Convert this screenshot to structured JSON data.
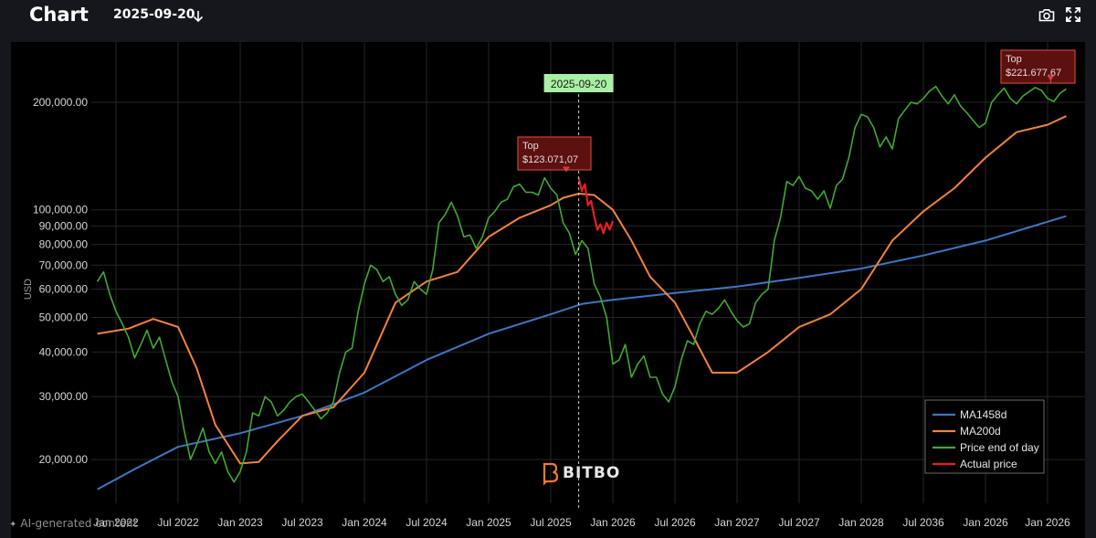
{
  "header": {
    "title": "Chart",
    "date": "2025-09-20"
  },
  "icons": {
    "download": "download-arrow-icon",
    "camera": "camera-icon",
    "fullscreen": "fullscreen-icon"
  },
  "colors": {
    "ma1458": "#3a78c6",
    "ma200": "#f5823a",
    "price": "#3fab2f",
    "actual": "#e8201c",
    "cursor_badge_bg": "#a8f0a4",
    "top_box_bg": "#5c1010",
    "top_box_border": "#c8443c"
  },
  "watermark": {
    "brand": "BITBO",
    "ai_label": "AI-generated content"
  },
  "chart_data": {
    "type": "line",
    "title": "",
    "xlabel": "",
    "ylabel": "USD",
    "y_scale": "log",
    "ylim": [
      16000,
      270000
    ],
    "grid": true,
    "y_ticks": [
      {
        "value": 200000,
        "label": "200,000.00"
      },
      {
        "value": 100000,
        "label": "100,000.00"
      },
      {
        "value": 90000,
        "label": "90,000.00"
      },
      {
        "value": 80000,
        "label": "80,000.00"
      },
      {
        "value": 70000,
        "label": "70,000.00"
      },
      {
        "value": 60000,
        "label": "60,000.00"
      },
      {
        "value": 50000,
        "label": "50,000.00"
      },
      {
        "value": 40000,
        "label": "40,000.00"
      },
      {
        "value": 30000,
        "label": "30,000.00"
      },
      {
        "value": 20000,
        "label": "20,000.00"
      }
    ],
    "x_ticks": [
      "Jan 2022",
      "Jul 2022",
      "Jan 2023",
      "Jul 2023",
      "Jan 2024",
      "Jul 2024",
      "Jan 2025",
      "Jul 2025",
      "Jan 2026",
      "Jul 2026",
      "Jan 2027",
      "Jul 2027",
      "Jan 2028",
      "Jul 2036",
      "Jan 2026",
      "Jan 2026"
    ],
    "legend": {
      "placement": "bottom-right",
      "entries": [
        "MA1458d",
        "MA200d",
        "Price end of day",
        "Actual price"
      ]
    },
    "cursor": {
      "x": 7.45,
      "label": "2025-09-20"
    },
    "annotations": [
      {
        "text": "Top",
        "value_text": "$123.071,07",
        "x": 7.25,
        "y": 123071
      },
      {
        "text": "Top",
        "value_text": "$221.677,67",
        "x": 15.05,
        "y": 221678
      }
    ],
    "series": [
      {
        "name": "MA1458d",
        "x": [
          -0.3,
          0.3,
          1.0,
          2.0,
          3.0,
          4.0,
          5.0,
          6.0,
          7.0,
          7.5,
          8.0,
          9.0,
          10.0,
          11.0,
          12.0,
          13.0,
          14.0,
          15.3
        ],
        "values": [
          16500,
          18800,
          21700,
          23700,
          26500,
          30800,
          38000,
          45000,
          51000,
          54500,
          56000,
          58500,
          61000,
          64500,
          68500,
          74500,
          82000,
          96000
        ]
      },
      {
        "name": "MA200d",
        "x": [
          -0.3,
          0.2,
          0.6,
          1.0,
          1.3,
          1.6,
          2.0,
          2.3,
          2.6,
          3.0,
          3.5,
          4.0,
          4.5,
          5.0,
          5.5,
          6.0,
          6.5,
          7.0,
          7.2,
          7.45,
          7.7,
          8.0,
          8.3,
          8.6,
          9.0,
          9.3,
          9.6,
          10.0,
          10.5,
          11.0,
          11.5,
          12.0,
          12.5,
          13.0,
          13.5,
          14.0,
          14.5,
          15.0,
          15.3
        ],
        "values": [
          45000,
          46500,
          49500,
          47000,
          36000,
          25000,
          19500,
          19700,
          22500,
          26500,
          28000,
          35000,
          55000,
          63000,
          67000,
          84000,
          95000,
          103000,
          108000,
          111000,
          110000,
          100000,
          82000,
          65000,
          55000,
          44000,
          35000,
          35000,
          40000,
          47000,
          51000,
          60000,
          82000,
          99000,
          115000,
          140000,
          165000,
          173000,
          183000
        ]
      },
      {
        "name": "Price end of day",
        "x": [
          -0.3,
          -0.2,
          -0.1,
          0.0,
          0.1,
          0.2,
          0.3,
          0.4,
          0.5,
          0.6,
          0.7,
          0.8,
          0.9,
          1.0,
          1.1,
          1.2,
          1.3,
          1.4,
          1.5,
          1.6,
          1.7,
          1.8,
          1.9,
          2.0,
          2.1,
          2.2,
          2.3,
          2.4,
          2.5,
          2.6,
          2.7,
          2.8,
          2.9,
          3.0,
          3.1,
          3.2,
          3.3,
          3.4,
          3.5,
          3.6,
          3.7,
          3.8,
          3.9,
          4.0,
          4.1,
          4.2,
          4.3,
          4.4,
          4.5,
          4.6,
          4.7,
          4.8,
          4.9,
          5.0,
          5.1,
          5.2,
          5.3,
          5.4,
          5.5,
          5.6,
          5.7,
          5.8,
          5.9,
          6.0,
          6.1,
          6.2,
          6.3,
          6.4,
          6.5,
          6.6,
          6.7,
          6.8,
          6.9,
          7.0,
          7.1,
          7.2,
          7.3,
          7.4,
          7.5,
          7.6,
          7.7,
          7.8,
          7.9,
          8.0,
          8.1,
          8.2,
          8.3,
          8.4,
          8.5,
          8.6,
          8.7,
          8.8,
          8.9,
          9.0,
          9.1,
          9.2,
          9.3,
          9.4,
          9.5,
          9.6,
          9.7,
          9.8,
          9.9,
          10.0,
          10.1,
          10.2,
          10.3,
          10.4,
          10.5,
          10.6,
          10.7,
          10.8,
          10.9,
          11.0,
          11.1,
          11.2,
          11.3,
          11.4,
          11.5,
          11.6,
          11.7,
          11.8,
          11.9,
          12.0,
          12.1,
          12.2,
          12.3,
          12.4,
          12.5,
          12.6,
          12.7,
          12.8,
          12.9,
          13.0,
          13.1,
          13.2,
          13.3,
          13.4,
          13.5,
          13.6,
          13.7,
          13.8,
          13.9,
          14.0,
          14.1,
          14.2,
          14.3,
          14.4,
          14.5,
          14.6,
          14.7,
          14.8,
          14.9,
          15.0,
          15.1,
          15.2,
          15.3
        ],
        "values": [
          63000,
          67000,
          58000,
          52000,
          48000,
          44000,
          38500,
          42000,
          46000,
          41000,
          44000,
          38000,
          33000,
          30000,
          24000,
          20000,
          22000,
          24500,
          21000,
          19500,
          21000,
          18500,
          17300,
          18500,
          21000,
          27000,
          26500,
          30000,
          29000,
          26500,
          27500,
          29000,
          30000,
          30500,
          29000,
          27500,
          26000,
          27000,
          29000,
          35000,
          40000,
          41000,
          52000,
          62000,
          70000,
          68000,
          63000,
          65000,
          58000,
          54000,
          56000,
          63000,
          60000,
          58000,
          68000,
          92000,
          97000,
          105000,
          96000,
          84000,
          85000,
          78000,
          84000,
          95000,
          99000,
          105000,
          107000,
          116000,
          118000,
          112000,
          112000,
          110000,
          123000,
          115000,
          110000,
          92000,
          86000,
          75000,
          82000,
          78000,
          62000,
          57000,
          50000,
          37000,
          38000,
          42000,
          34000,
          37000,
          39000,
          34000,
          34000,
          30500,
          29000,
          32000,
          38000,
          43000,
          42000,
          48000,
          52000,
          51000,
          53000,
          56000,
          52000,
          49000,
          47000,
          48000,
          55000,
          58000,
          60000,
          82000,
          95000,
          120000,
          117000,
          124000,
          115000,
          113000,
          107000,
          113000,
          101000,
          117000,
          122000,
          140000,
          170000,
          185000,
          182000,
          170000,
          150000,
          160000,
          148000,
          180000,
          190000,
          200000,
          198000,
          205000,
          215000,
          221600,
          208000,
          198000,
          210000,
          195000,
          187000,
          178000,
          170000,
          175000,
          200000,
          210000,
          219000,
          205000,
          198000,
          208000,
          214000,
          220000,
          216000,
          205000,
          201000,
          212000,
          218000
        ]
      },
      {
        "name": "Actual price",
        "x": [
          7.45,
          7.5,
          7.55,
          7.6,
          7.65,
          7.7,
          7.75,
          7.8,
          7.85,
          7.9,
          7.95,
          8.0
        ],
        "values": [
          123000,
          113000,
          118000,
          103000,
          106000,
          96000,
          88000,
          91000,
          86000,
          92000,
          88000,
          93000
        ]
      }
    ]
  }
}
